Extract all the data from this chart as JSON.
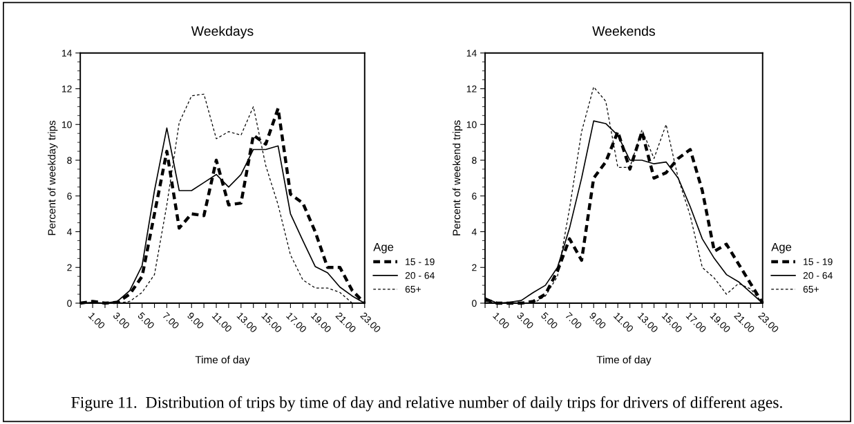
{
  "chart_data": [
    {
      "type": "line",
      "title": "Weekdays",
      "xlabel": "Time of day",
      "ylabel": "Percent of weekday trips",
      "legend_title": "Age",
      "legend": "right",
      "grid": false,
      "x": [
        0,
        1,
        2,
        3,
        4,
        5,
        6,
        7,
        8,
        9,
        10,
        11,
        12,
        13,
        14,
        15,
        16,
        17,
        18,
        19,
        20,
        21,
        22,
        23
      ],
      "xlim": [
        0,
        23
      ],
      "xticks": [
        {
          "value": 0,
          "label": null
        },
        {
          "value": 1,
          "label": "1.00"
        },
        {
          "value": 2,
          "label": null
        },
        {
          "value": 3,
          "label": "3.00"
        },
        {
          "value": 4,
          "label": null
        },
        {
          "value": 5,
          "label": "5.00"
        },
        {
          "value": 6,
          "label": null
        },
        {
          "value": 7,
          "label": "7.00"
        },
        {
          "value": 8,
          "label": null
        },
        {
          "value": 9,
          "label": "9.00"
        },
        {
          "value": 10,
          "label": null
        },
        {
          "value": 11,
          "label": "11.00"
        },
        {
          "value": 12,
          "label": null
        },
        {
          "value": 13,
          "label": "13.00"
        },
        {
          "value": 14,
          "label": null
        },
        {
          "value": 15,
          "label": "15.00"
        },
        {
          "value": 16,
          "label": null
        },
        {
          "value": 17,
          "label": "17.00"
        },
        {
          "value": 18,
          "label": null
        },
        {
          "value": 19,
          "label": "19.00"
        },
        {
          "value": 20,
          "label": null
        },
        {
          "value": 21,
          "label": "21.00"
        },
        {
          "value": 22,
          "label": null
        },
        {
          "value": 23,
          "label": "23.00"
        }
      ],
      "ylim": [
        0,
        14
      ],
      "yticks": [
        0,
        2,
        4,
        6,
        8,
        10,
        12,
        14
      ],
      "series": [
        {
          "name": "15 - 19",
          "color": "#000000",
          "line_style": "dashed",
          "values": [
            0,
            0.1,
            0,
            0.05,
            0.5,
            1.5,
            5.0,
            8.5,
            4.2,
            5.0,
            4.9,
            8.0,
            5.5,
            5.6,
            9.4,
            8.9,
            10.9,
            6.1,
            5.6,
            4.0,
            2.0,
            2.0,
            0.7,
            0
          ]
        },
        {
          "name": "20 - 64",
          "color": "#000000",
          "line_style": "solid",
          "values": [
            0,
            0.05,
            0,
            0.1,
            0.7,
            2.1,
            6.3,
            9.8,
            6.3,
            6.3,
            6.75,
            7.2,
            6.5,
            7.2,
            8.6,
            8.6,
            8.8,
            5.0,
            3.5,
            2.05,
            1.7,
            0.9,
            0.4,
            0
          ]
        },
        {
          "name": "65+",
          "color": "#000000",
          "line_style": "dotted",
          "values": [
            0,
            0,
            0,
            0,
            0.1,
            0.6,
            1.6,
            5.5,
            10.1,
            11.6,
            11.7,
            9.2,
            9.6,
            9.4,
            11.0,
            7.7,
            5.5,
            2.7,
            1.3,
            0.85,
            0.85,
            0.6,
            0,
            0
          ]
        }
      ],
      "annotations": [
        "Figure 11.  Distribution of trips by time of day and relative number of daily trips for drivers of different ages."
      ]
    },
    {
      "type": "line",
      "title": "Weekends",
      "xlabel": "Time of day",
      "ylabel": "Percent of weekend trips",
      "legend_title": "Age",
      "legend": "right",
      "grid": false,
      "x": [
        0,
        1,
        2,
        3,
        4,
        5,
        6,
        7,
        8,
        9,
        10,
        11,
        12,
        13,
        14,
        15,
        16,
        17,
        18,
        19,
        20,
        21,
        22,
        23
      ],
      "xlim": [
        0,
        23
      ],
      "xticks": [
        {
          "value": 0,
          "label": null
        },
        {
          "value": 1,
          "label": "1.00"
        },
        {
          "value": 2,
          "label": null
        },
        {
          "value": 3,
          "label": "3.00"
        },
        {
          "value": 4,
          "label": null
        },
        {
          "value": 5,
          "label": "5.00"
        },
        {
          "value": 6,
          "label": null
        },
        {
          "value": 7,
          "label": "7.00"
        },
        {
          "value": 8,
          "label": null
        },
        {
          "value": 9,
          "label": "9.00"
        },
        {
          "value": 10,
          "label": null
        },
        {
          "value": 11,
          "label": "11.00"
        },
        {
          "value": 12,
          "label": null
        },
        {
          "value": 13,
          "label": "13.00"
        },
        {
          "value": 14,
          "label": null
        },
        {
          "value": 15,
          "label": "15.00"
        },
        {
          "value": 16,
          "label": null
        },
        {
          "value": 17,
          "label": "17.00"
        },
        {
          "value": 18,
          "label": null
        },
        {
          "value": 19,
          "label": "19.00"
        },
        {
          "value": 20,
          "label": null
        },
        {
          "value": 21,
          "label": "21.00"
        },
        {
          "value": 22,
          "label": null
        },
        {
          "value": 23,
          "label": "23.00"
        }
      ],
      "ylim": [
        0,
        14
      ],
      "yticks": [
        0,
        2,
        4,
        6,
        8,
        10,
        12,
        14
      ],
      "series": [
        {
          "name": "15 - 19",
          "color": "#000000",
          "line_style": "dashed",
          "values": [
            0.2,
            0,
            0,
            0,
            0.1,
            0.5,
            1.8,
            3.6,
            2.4,
            7.0,
            7.9,
            9.6,
            7.5,
            9.6,
            7.0,
            7.3,
            8.1,
            8.6,
            6.3,
            2.9,
            3.3,
            2.2,
            1.1,
            0
          ]
        },
        {
          "name": "20 - 64",
          "color": "#000000",
          "line_style": "solid",
          "values": [
            0.3,
            0,
            0.05,
            0.15,
            0.6,
            1.0,
            2.0,
            4.2,
            7.0,
            10.2,
            10.05,
            9.4,
            8.0,
            8.0,
            7.8,
            7.9,
            7.0,
            5.4,
            3.6,
            2.5,
            1.6,
            1.2,
            0.6,
            0
          ]
        },
        {
          "name": "65+",
          "color": "#000000",
          "line_style": "dotted",
          "values": [
            0.1,
            0,
            0,
            0,
            0,
            0.4,
            1.5,
            5.3,
            9.6,
            12.1,
            11.3,
            7.6,
            7.6,
            9.7,
            8.1,
            10.0,
            7.0,
            4.9,
            2.0,
            1.4,
            0.5,
            1.1,
            0.8,
            0
          ]
        }
      ]
    }
  ]
}
